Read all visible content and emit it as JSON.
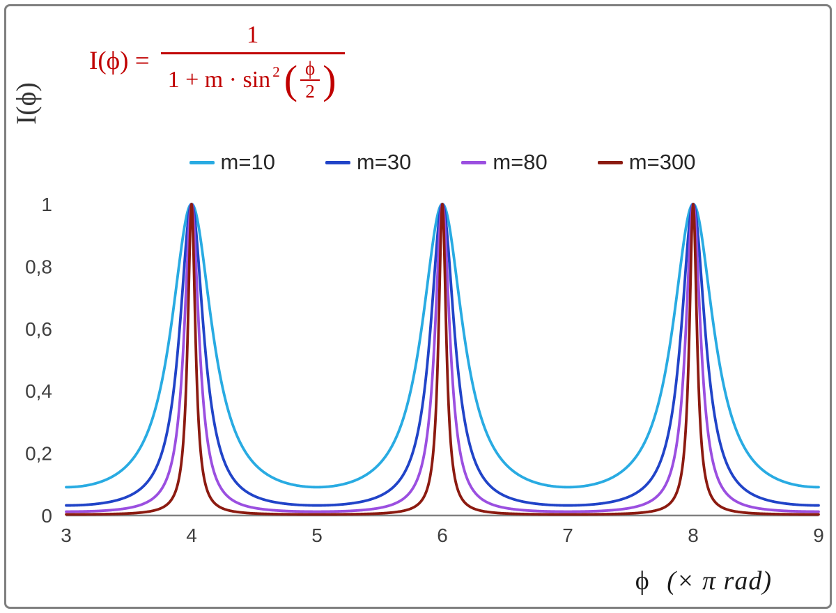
{
  "chart_data": {
    "type": "line",
    "title": "",
    "function": "I(x) = 1 / (1 + m * sin^2(pi * x / 2)), x in units of pi rad",
    "formula_text": "I(ϕ) = 1 / (1 + m·sin²(ϕ/2))",
    "xlabel": "ϕ  (× π rad)",
    "ylabel": "I(ϕ)",
    "x_range": [
      3,
      9
    ],
    "y_range": [
      0,
      1
    ],
    "sample_step": 0.004,
    "grid": false,
    "legend_position": "top-center",
    "axis_color": "#808080",
    "tick_color": "#3f3f3f",
    "frame_color": "#7f7f7f",
    "x_ticks": [
      {
        "value": 3,
        "label": "3"
      },
      {
        "value": 4,
        "label": "4"
      },
      {
        "value": 5,
        "label": "5"
      },
      {
        "value": 6,
        "label": "6"
      },
      {
        "value": 7,
        "label": "7"
      },
      {
        "value": 8,
        "label": "8"
      },
      {
        "value": 9,
        "label": "9"
      }
    ],
    "y_ticks": [
      {
        "value": 0,
        "label": "0"
      },
      {
        "value": 0.2,
        "label": "0,2"
      },
      {
        "value": 0.4,
        "label": "0,4"
      },
      {
        "value": 0.6,
        "label": "0,6"
      },
      {
        "value": 0.8,
        "label": "0,8"
      },
      {
        "value": 1,
        "label": "1"
      }
    ],
    "series": [
      {
        "name": "m=10",
        "m": 10,
        "color": "#29ABE2",
        "peaks_x": [
          4,
          6,
          8
        ],
        "peak_value": 1
      },
      {
        "name": "m=30",
        "m": 30,
        "color": "#2144C8",
        "peaks_x": [
          4,
          6,
          8
        ],
        "peak_value": 1
      },
      {
        "name": "m=80",
        "m": 80,
        "color": "#9B4FE0",
        "peaks_x": [
          4,
          6,
          8
        ],
        "peak_value": 1
      },
      {
        "name": "m=300",
        "m": 300,
        "color": "#8C1B11",
        "peaks_x": [
          4,
          6,
          8
        ],
        "peak_value": 1
      }
    ]
  },
  "formula": {
    "lhs": "I(ϕ) =",
    "numerator": "1",
    "den_text": "1 + m · sin",
    "den_sup": "2",
    "lparen": "(",
    "rparen": ")",
    "inner_num": "ϕ",
    "inner_den": "2",
    "color": "#C00000"
  },
  "labels": {
    "y_axis": "I(ϕ)",
    "x_axis_phi": "ϕ",
    "x_axis_rest": "(× π rad)"
  }
}
